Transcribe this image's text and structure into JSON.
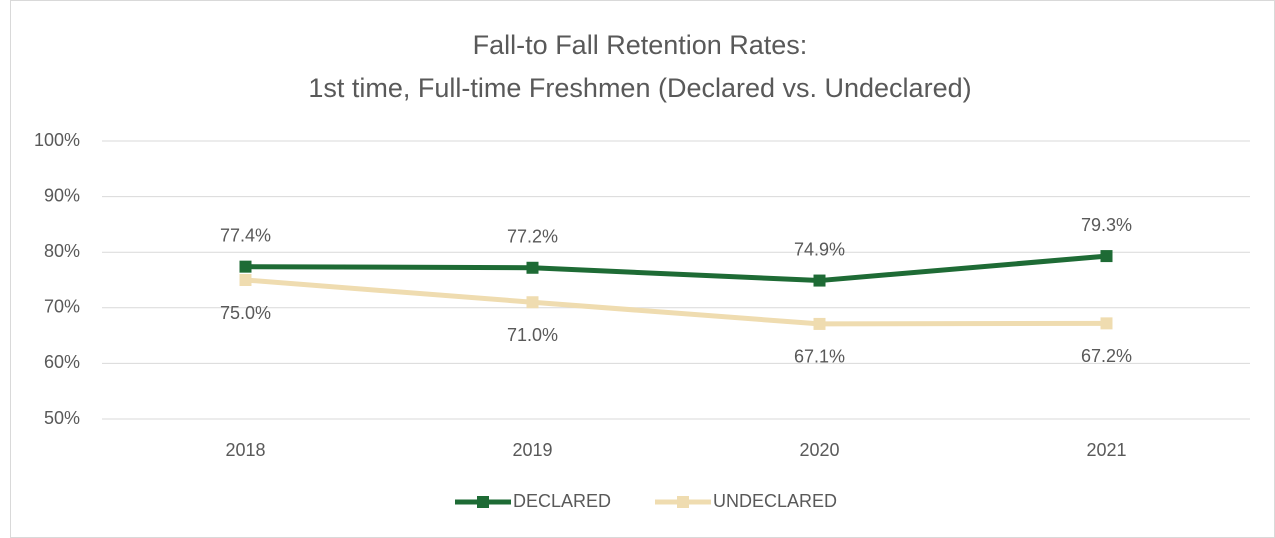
{
  "chart_data": {
    "type": "line",
    "title": [
      "Fall-to Fall Retention Rates:",
      "1st time, Full-time Freshmen (Declared vs. Undeclared)"
    ],
    "categories": [
      "2018",
      "2019",
      "2020",
      "2021"
    ],
    "series": [
      {
        "name": "DECLARED",
        "color": "#1e6b35",
        "values": [
          77.4,
          77.2,
          74.9,
          79.3
        ],
        "value_labels": [
          "77.4%",
          "77.2%",
          "74.9%",
          "79.3%"
        ]
      },
      {
        "name": "UNDECLARED",
        "color": "#efdcb0",
        "values": [
          75.0,
          71.0,
          67.1,
          67.2
        ],
        "value_labels": [
          "75.0%",
          "71.0%",
          "67.1%",
          "67.2%"
        ]
      }
    ],
    "ylim": [
      50,
      100
    ],
    "yticks": [
      {
        "value": 50,
        "label": "50%"
      },
      {
        "value": 60,
        "label": "60%"
      },
      {
        "value": 70,
        "label": "70%"
      },
      {
        "value": 80,
        "label": "80%"
      },
      {
        "value": 90,
        "label": "90%"
      },
      {
        "value": 100,
        "label": "100%"
      }
    ],
    "grid": true,
    "legend": "bottom"
  }
}
